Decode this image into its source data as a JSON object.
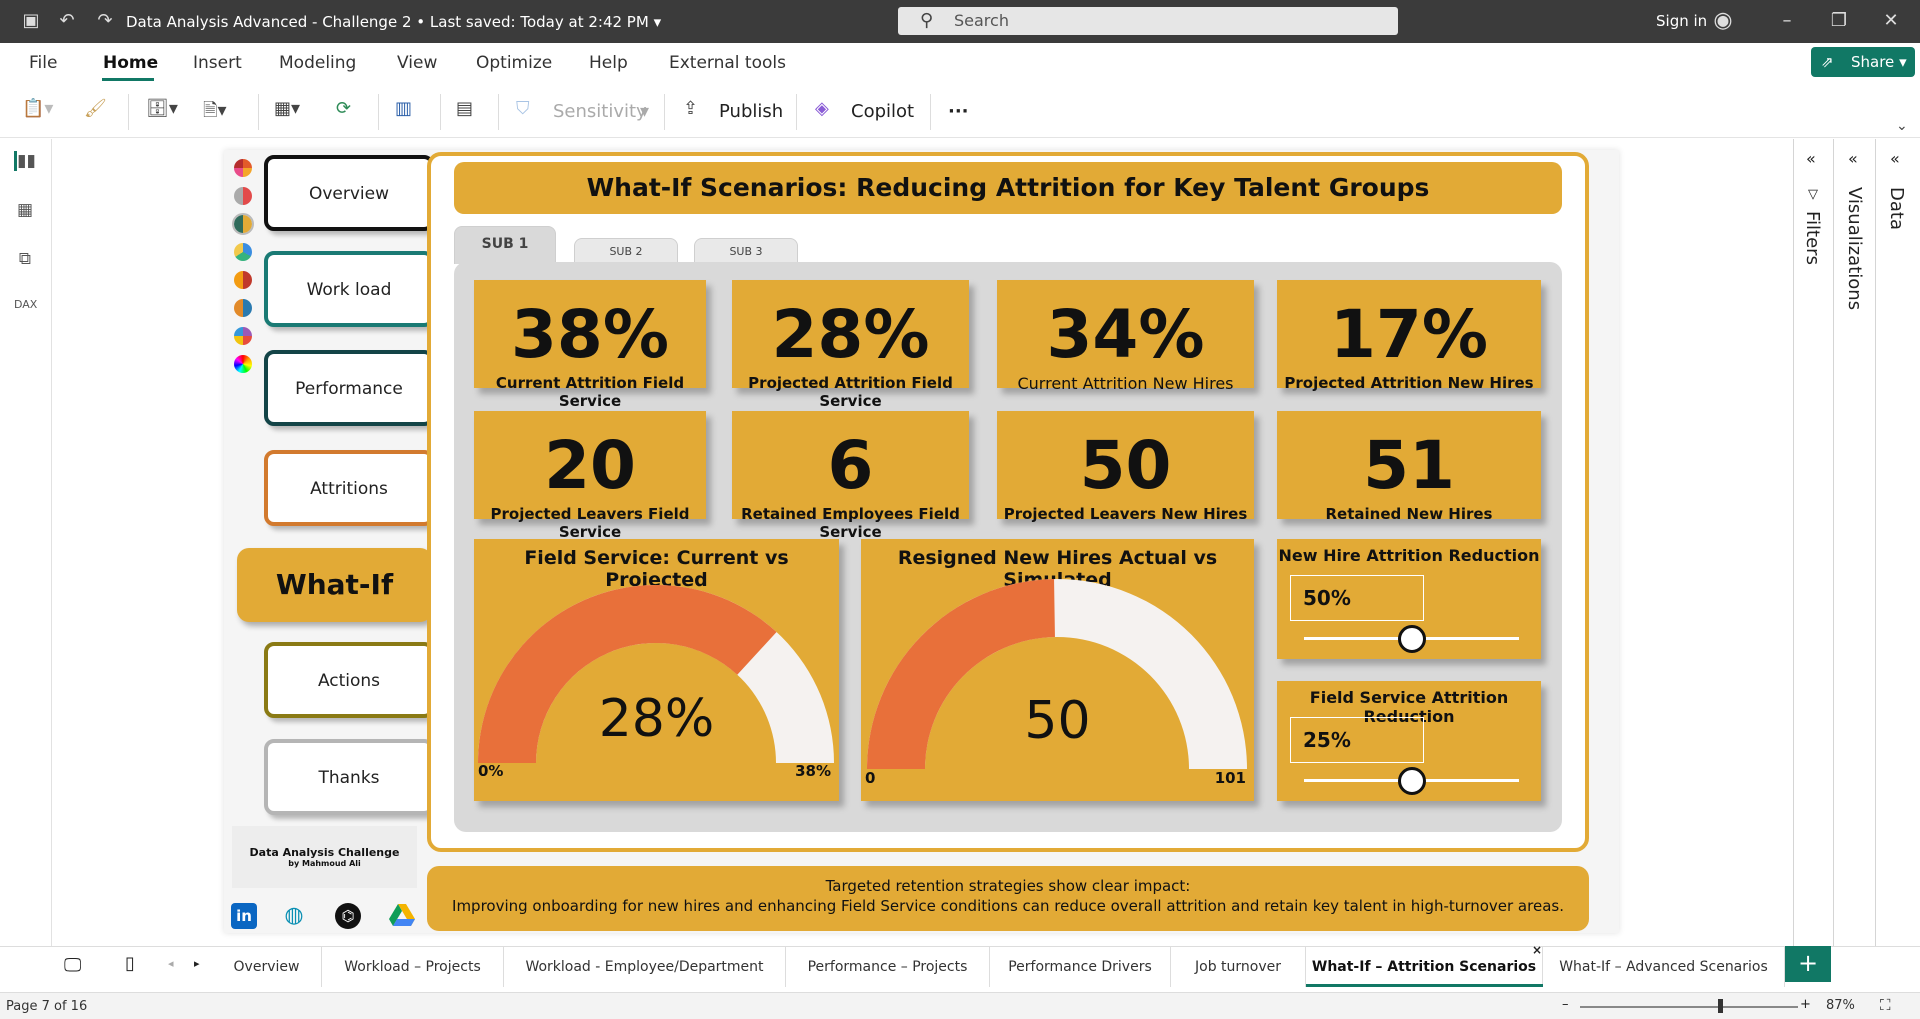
{
  "window": {
    "title": "Data Analysis Advanced - Challenge 2",
    "saved": "Last saved: Today at 2:42 PM",
    "search_placeholder": "Search",
    "sign_in": "Sign in"
  },
  "menu": [
    "File",
    "Home",
    "Insert",
    "Modeling",
    "View",
    "Optimize",
    "Help",
    "External tools"
  ],
  "share_label": "Share",
  "ribbon": {
    "sensitivity": "Sensitivity",
    "publish": "Publish",
    "copilot": "Copilot",
    "more": "···"
  },
  "right_panels": {
    "filters": "Filters",
    "visualizations": "Visualizations",
    "data": "Data"
  },
  "nav": {
    "overview": "Overview",
    "workload": "Work load",
    "performance": "Performance",
    "attritions": "Attritions",
    "whatif": "What-If",
    "actions": "Actions",
    "thanks": "Thanks"
  },
  "brand": {
    "line1": "Data Analysis Challenge",
    "line2": "by Mahmoud Ali"
  },
  "report": {
    "title": "What-If Scenarios: Reducing Attrition for Key Talent Groups",
    "tabs": [
      "SUB 1",
      "SUB 2",
      "SUB 3"
    ],
    "kpis": [
      {
        "value": "38%",
        "label": "Current Attrition Field Service"
      },
      {
        "value": "28%",
        "label": "Projected Attrition Field Service"
      },
      {
        "value": "34%",
        "label": "Current Attrition New Hires"
      },
      {
        "value": "17%",
        "label": "Projected Attrition New Hires"
      },
      {
        "value": "20",
        "label": "Projected Leavers Field Service"
      },
      {
        "value": "6",
        "label": "Retained Employees Field Service"
      },
      {
        "value": "50",
        "label": "Projected Leavers New Hires"
      },
      {
        "value": "51",
        "label": "Retained New Hires"
      }
    ],
    "gauges": [
      {
        "title": "Field Service: Current vs Projected",
        "value_label": "28%",
        "value": 28,
        "min": 0,
        "max": 38,
        "min_label": "0%",
        "max_label": "38%"
      },
      {
        "title": "Resigned New Hires Actual vs Simulated",
        "value_label": "50",
        "value": 50,
        "min": 0,
        "max": 101,
        "min_label": "0",
        "max_label": "101"
      }
    ],
    "sliders": [
      {
        "title": "New Hire Attrition Reduction",
        "value_label": "50%",
        "fraction": 0.5
      },
      {
        "title": "Field Service Attrition Reduction",
        "value_label": "25%",
        "fraction": 0.5
      }
    ],
    "footer": {
      "line1": "Targeted retention strategies show clear impact:",
      "line2": "Improving onboarding for new hires and enhancing Field Service conditions can reduce overall attrition and retain key talent in high-turnover areas."
    }
  },
  "page_tabs": [
    "Overview",
    "Workload – Projects",
    "Workload - Employee/Department",
    "Performance – Projects",
    "Performance Drivers",
    "Job turnover",
    "What-If – Attrition Scenarios",
    "What-If – Advanced Scenarios"
  ],
  "status": {
    "page": "Page 7 of 16",
    "zoom": "87%"
  },
  "colors": {
    "accent": "#e2aa36",
    "gauge_fill": "#e8703a",
    "gauge_track": "#f5f2f0",
    "brand_green": "#117865"
  }
}
